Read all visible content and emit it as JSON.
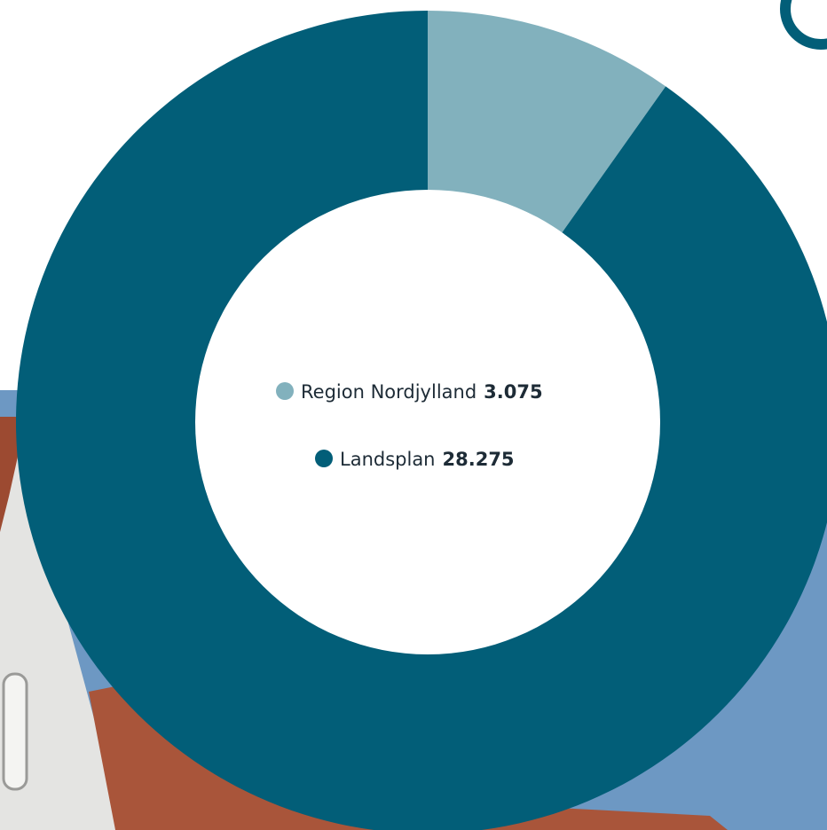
{
  "chart_data": {
    "type": "pie",
    "donut": true,
    "categories": [
      "Region Nordjylland",
      "Landsplan"
    ],
    "values": [
      3075,
      28275
    ],
    "value_labels": [
      "3.075",
      "28.275"
    ],
    "colors": [
      "#82b1bd",
      "#025e78"
    ]
  }
}
